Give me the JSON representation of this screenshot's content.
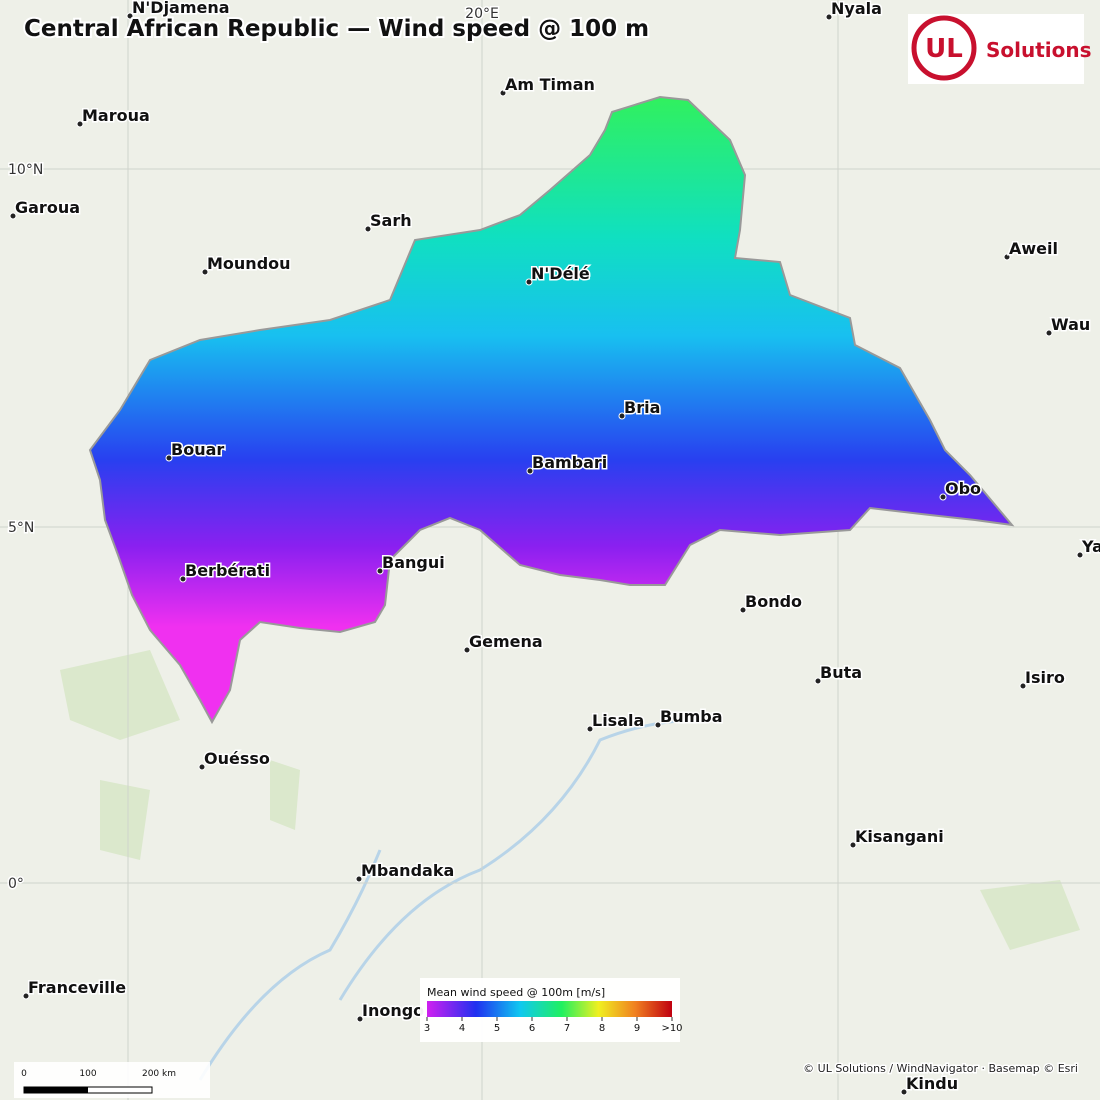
{
  "title": "Central African Republic — Wind speed @ 100 m",
  "logo": {
    "mark": "UL",
    "text": "Solutions"
  },
  "graticule": {
    "lat": [
      "10°N",
      "5°N",
      "0°"
    ],
    "lon": [
      "20°E"
    ]
  },
  "cities": [
    "N'Djamena",
    "Nyala",
    "Am Timan",
    "Maroua",
    "Garoua",
    "Sarh",
    "Moundou",
    "N'Délé",
    "Aweil",
    "Wau",
    "Bria",
    "Bouar",
    "Bambari",
    "Obo",
    "Yambio",
    "Berbérati",
    "Bangui",
    "Bondo",
    "Gemena",
    "Buta",
    "Isiro",
    "Lisala",
    "Bumba",
    "Ouésso",
    "Kisangani",
    "Mbandaka",
    "Franceville",
    "Inongo",
    "Kindu"
  ],
  "legend": {
    "title": "Mean wind speed @ 100m  [m/s]",
    "ticks": [
      3,
      4,
      5,
      6,
      7,
      8,
      9,
      {
        "value": 10,
        "label": ">10"
      }
    ]
  },
  "scale_bar": [
    "0",
    "100",
    "200 km"
  ],
  "attribution": "© UL Solutions / WindNavigator · Basemap © Esri"
}
